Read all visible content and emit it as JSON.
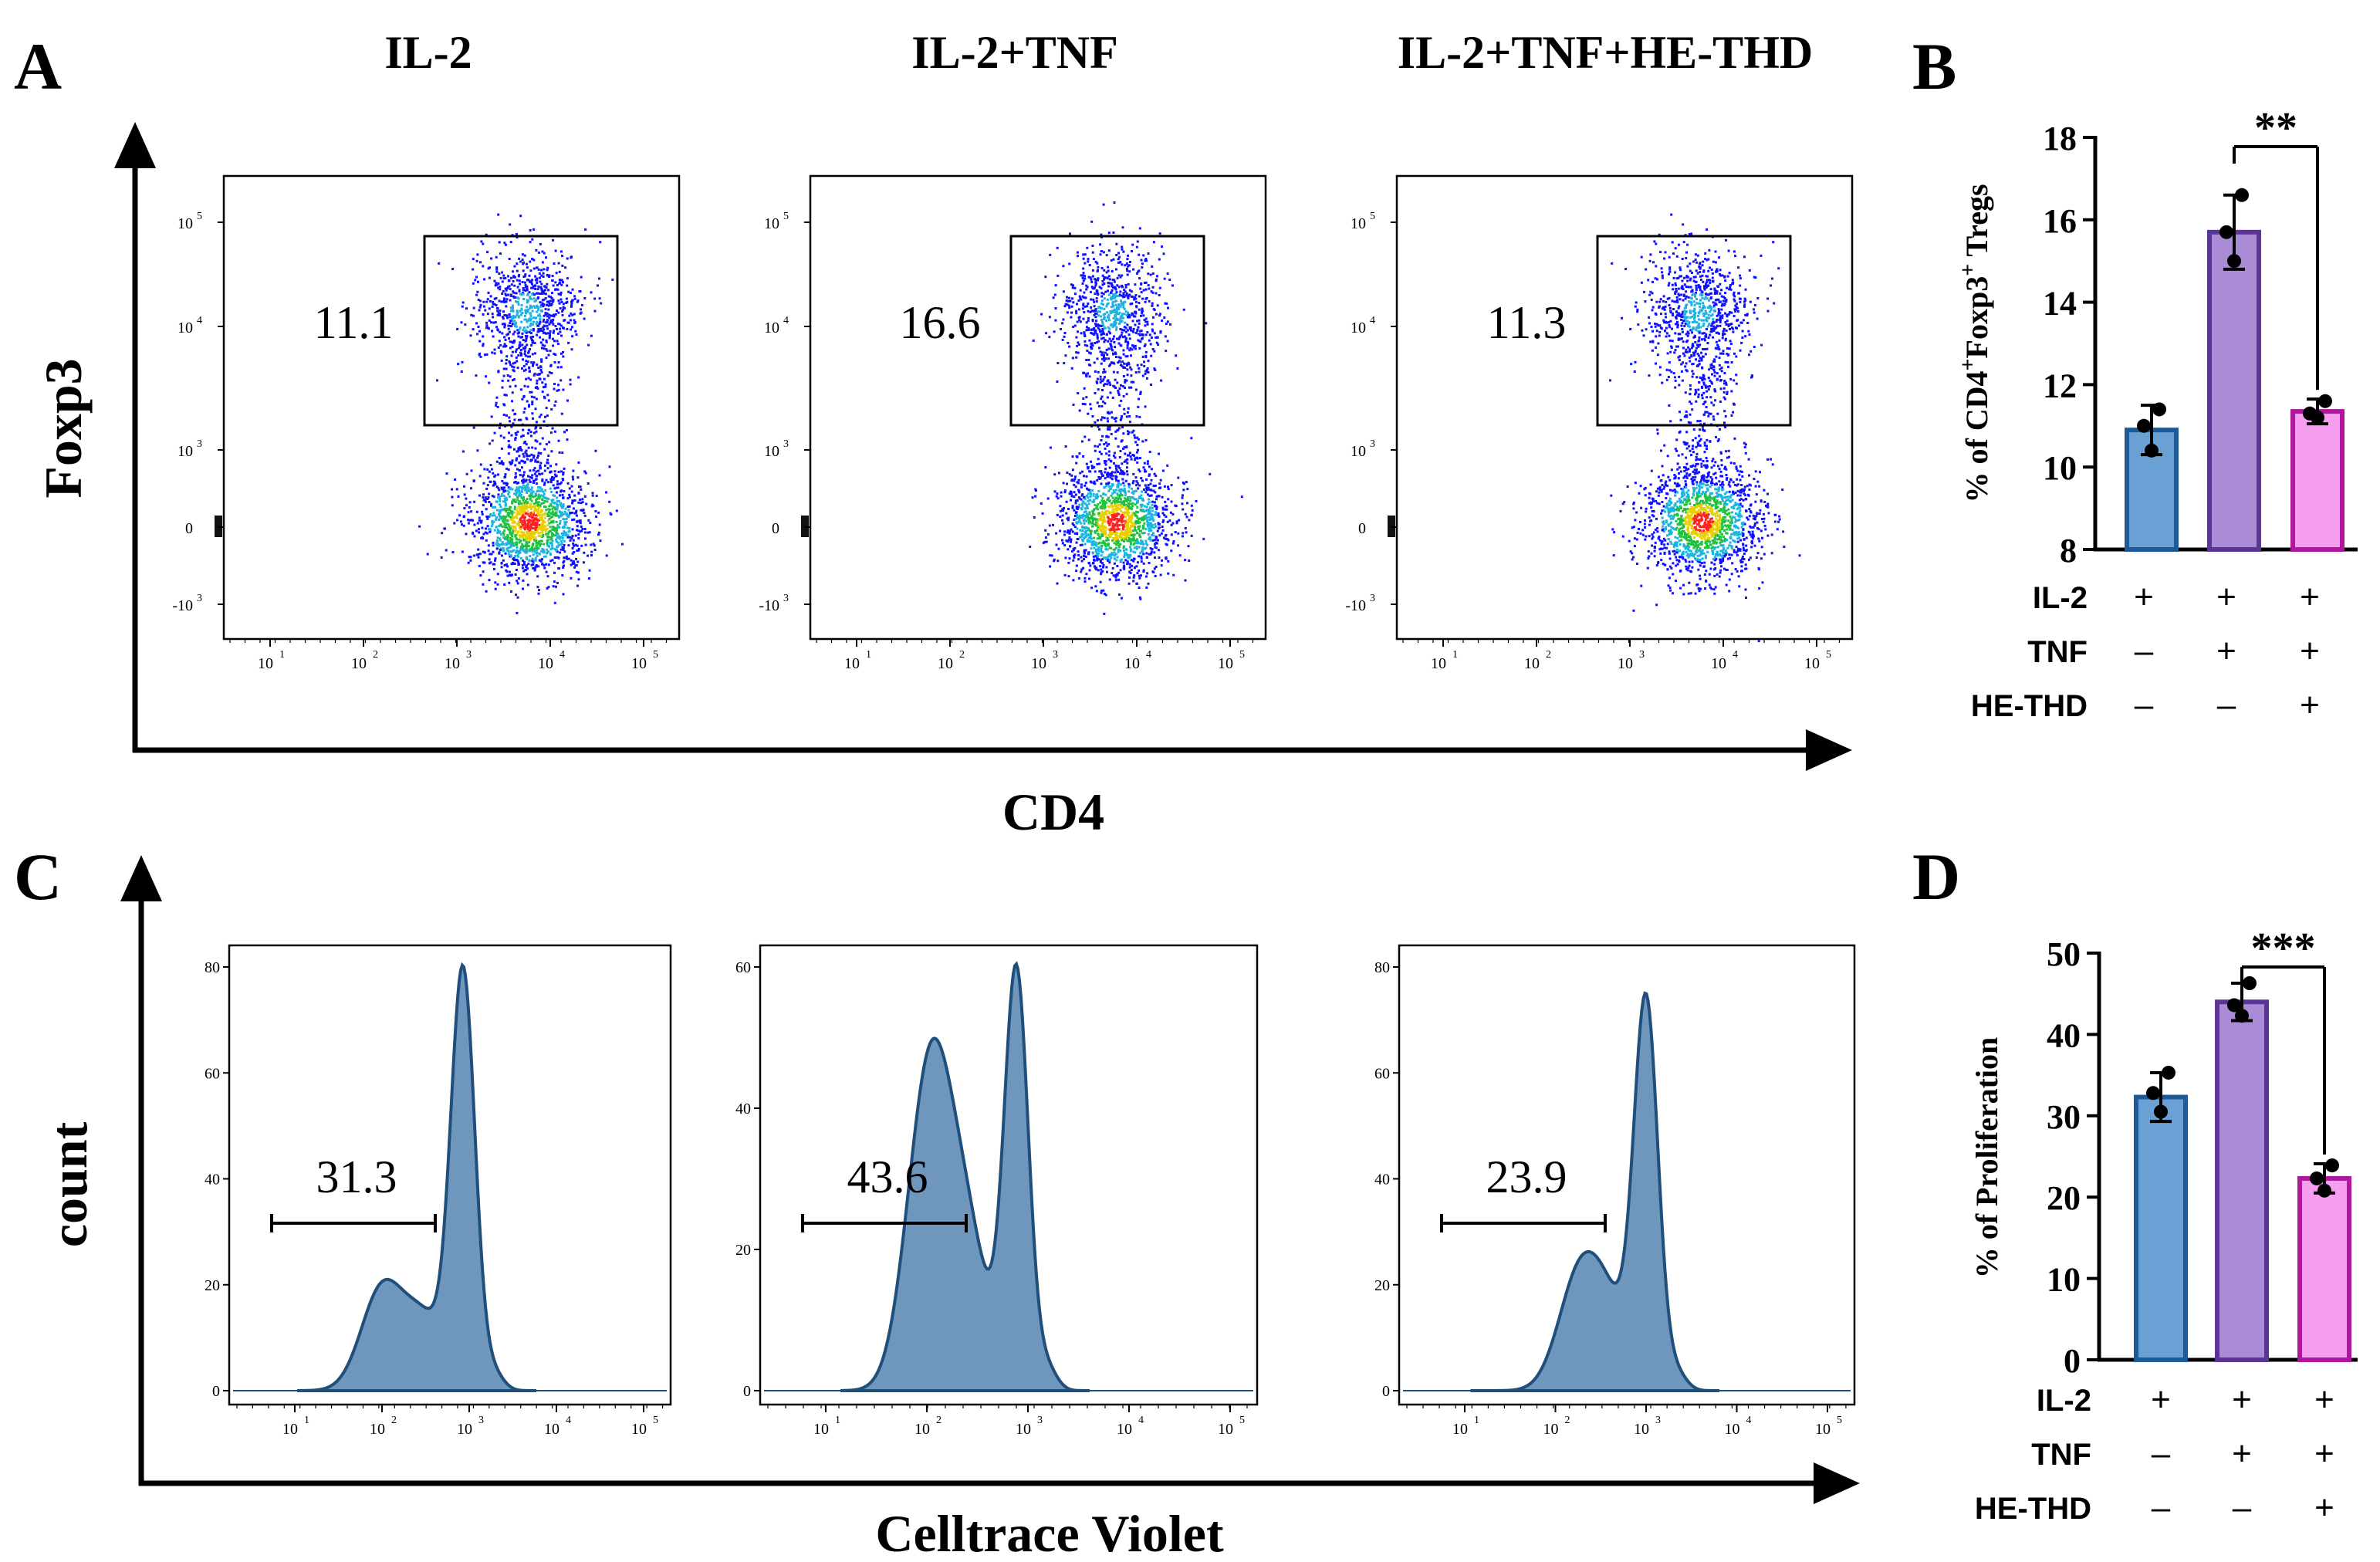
{
  "panel_letters": {
    "a": "A",
    "b": "B",
    "c": "C",
    "d": "D"
  },
  "conditions": [
    "IL-2",
    "IL-2+TNF",
    "IL-2+TNF+HE-THD"
  ],
  "panel_a": {
    "y_axis_label": "Foxp3",
    "x_axis_label": "CD4",
    "gate_values": [
      "11.1",
      "16.6",
      "11.3"
    ],
    "log_ticks": [
      "10",
      "10",
      "10",
      "10",
      "10",
      "0",
      "-10"
    ],
    "tick_exponents": [
      "1",
      "2",
      "3",
      "4",
      "5",
      "3"
    ],
    "zero_tick": "0"
  },
  "panel_c": {
    "y_axis_label": "count",
    "x_axis_label": "Celltrace Violet",
    "gate_values": [
      "31.3",
      "43.6",
      "23.9"
    ],
    "y_ticks": [
      [
        "0",
        "20",
        "40",
        "60",
        "80"
      ],
      [
        "0",
        "20",
        "40",
        "60"
      ],
      [
        "0",
        "20",
        "40",
        "60",
        "80"
      ]
    ]
  },
  "treatment_table": {
    "row_labels": [
      "IL-2",
      "TNF",
      "HE-THD"
    ],
    "rows": [
      [
        "+",
        "+",
        "+"
      ],
      [
        "–",
        "+",
        "+"
      ],
      [
        "–",
        "–",
        "+"
      ]
    ]
  },
  "colors": {
    "bar1_fill": "#6aa0d4",
    "bar1_edge": "#1f5a98",
    "bar2_fill": "#a98bd6",
    "bar2_edge": "#5b3594",
    "bar3_fill": "#f79ef0",
    "bar3_edge": "#b0169e",
    "histogram_fill": "#6f97bd",
    "histogram_line": "#1f4f7a"
  },
  "chart_data": [
    {
      "id": "B",
      "type": "bar",
      "ylabel": "% of CD4+Foxp3+ Tregs",
      "ylabel_parts": {
        "pre": "% of CD4",
        "sup1": "+",
        "mid": "Foxp3",
        "sup2": "+",
        "post": " Tregs"
      },
      "ylim": [
        8,
        18
      ],
      "yticks": [
        "8",
        "10",
        "12",
        "14",
        "16",
        "18"
      ],
      "categories": [
        "IL-2",
        "IL-2+TNF",
        "IL-2+TNF+HE-THD"
      ],
      "values": [
        10.9,
        15.7,
        11.35
      ],
      "errors": [
        0.6,
        0.9,
        0.3
      ],
      "points": [
        [
          10.4,
          11.0,
          11.4
        ],
        [
          15.0,
          15.7,
          16.6
        ],
        [
          11.2,
          11.3,
          11.6
        ]
      ],
      "significance": {
        "from": 1,
        "to": 2,
        "label": "**"
      }
    },
    {
      "id": "D",
      "type": "bar",
      "ylabel": "% of Proliferation",
      "ylim": [
        0,
        50
      ],
      "yticks": [
        "0",
        "10",
        "20",
        "30",
        "40",
        "50"
      ],
      "categories": [
        "IL-2",
        "IL-2+TNF",
        "IL-2+TNF+HE-THD"
      ],
      "values": [
        32.3,
        44.0,
        22.3
      ],
      "errors": [
        3.0,
        2.3,
        1.8
      ],
      "points": [
        [
          30.5,
          32.8,
          35.3
        ],
        [
          42.3,
          43.6,
          46.3
        ],
        [
          20.8,
          22.3,
          23.9
        ]
      ],
      "significance": {
        "from": 1,
        "to": 2,
        "label": "***"
      }
    }
  ]
}
